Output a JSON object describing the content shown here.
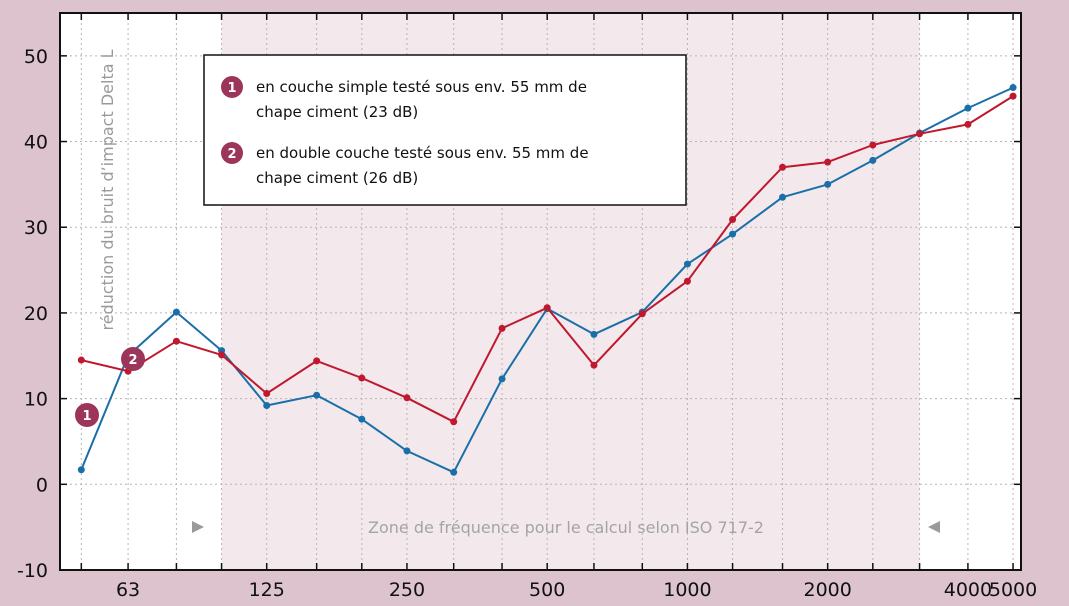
{
  "chart_data": {
    "type": "line",
    "x_scale": "log",
    "x": [
      50,
      63,
      80,
      100,
      125,
      160,
      200,
      250,
      315,
      400,
      500,
      630,
      800,
      1000,
      1250,
      1600,
      2000,
      2500,
      3150,
      4000,
      5000
    ],
    "x_tick_labels": [
      "63",
      "125",
      "250",
      "500",
      "1000",
      "2000",
      "4000",
      "5000"
    ],
    "x_tick_values": [
      63,
      125,
      250,
      500,
      1000,
      2000,
      4000,
      5000
    ],
    "ylabel": "réduction du bruit d’impact Delta L",
    "ylim": [
      -10,
      55
    ],
    "y_ticks": [
      -10,
      0,
      10,
      20,
      30,
      40,
      50
    ],
    "grid": true,
    "series": [
      {
        "marker": "1",
        "name": "en couche simple  testé sous env. 55 mm de chape ciment (23 dB)",
        "color": "#1a6fa8",
        "values": [
          1.7,
          15.0,
          20.1,
          15.6,
          9.2,
          10.4,
          7.6,
          3.9,
          1.4,
          12.3,
          20.5,
          17.5,
          20.1,
          25.7,
          29.2,
          33.5,
          35.0,
          37.8,
          41.0,
          43.9,
          46.3
        ]
      },
      {
        "marker": "2",
        "name": "en double couche testé sous env. 55 mm de chape ciment (26 dB)",
        "color": "#c0182e",
        "values": [
          14.5,
          13.2,
          16.7,
          15.1,
          10.6,
          14.4,
          12.4,
          10.1,
          7.3,
          18.2,
          20.6,
          13.9,
          19.9,
          23.7,
          30.9,
          37.0,
          37.6,
          39.6,
          40.9,
          42.0,
          45.3
        ]
      }
    ],
    "legend": [
      {
        "badge": "1",
        "line1": "en couche simple  testé sous env. 55 mm de",
        "line2": "chape ciment (23 dB)"
      },
      {
        "badge": "2",
        "line1": "en double couche testé sous env. 55 mm de",
        "line2": "chape ciment (26 dB)"
      }
    ],
    "legend_placement": "top-center",
    "annotation": "Zone de fréquence pour le calcul selon ISO 717-2",
    "zone_range": [
      100,
      3150
    ],
    "colors": {
      "page_background": "#dcc3cd",
      "zone_fill": "#f3e9ed",
      "plot_background": "#ffffff",
      "badge_fill": "#9b3559",
      "series_1": "#1a6fa8",
      "series_2": "#c0182e"
    }
  }
}
